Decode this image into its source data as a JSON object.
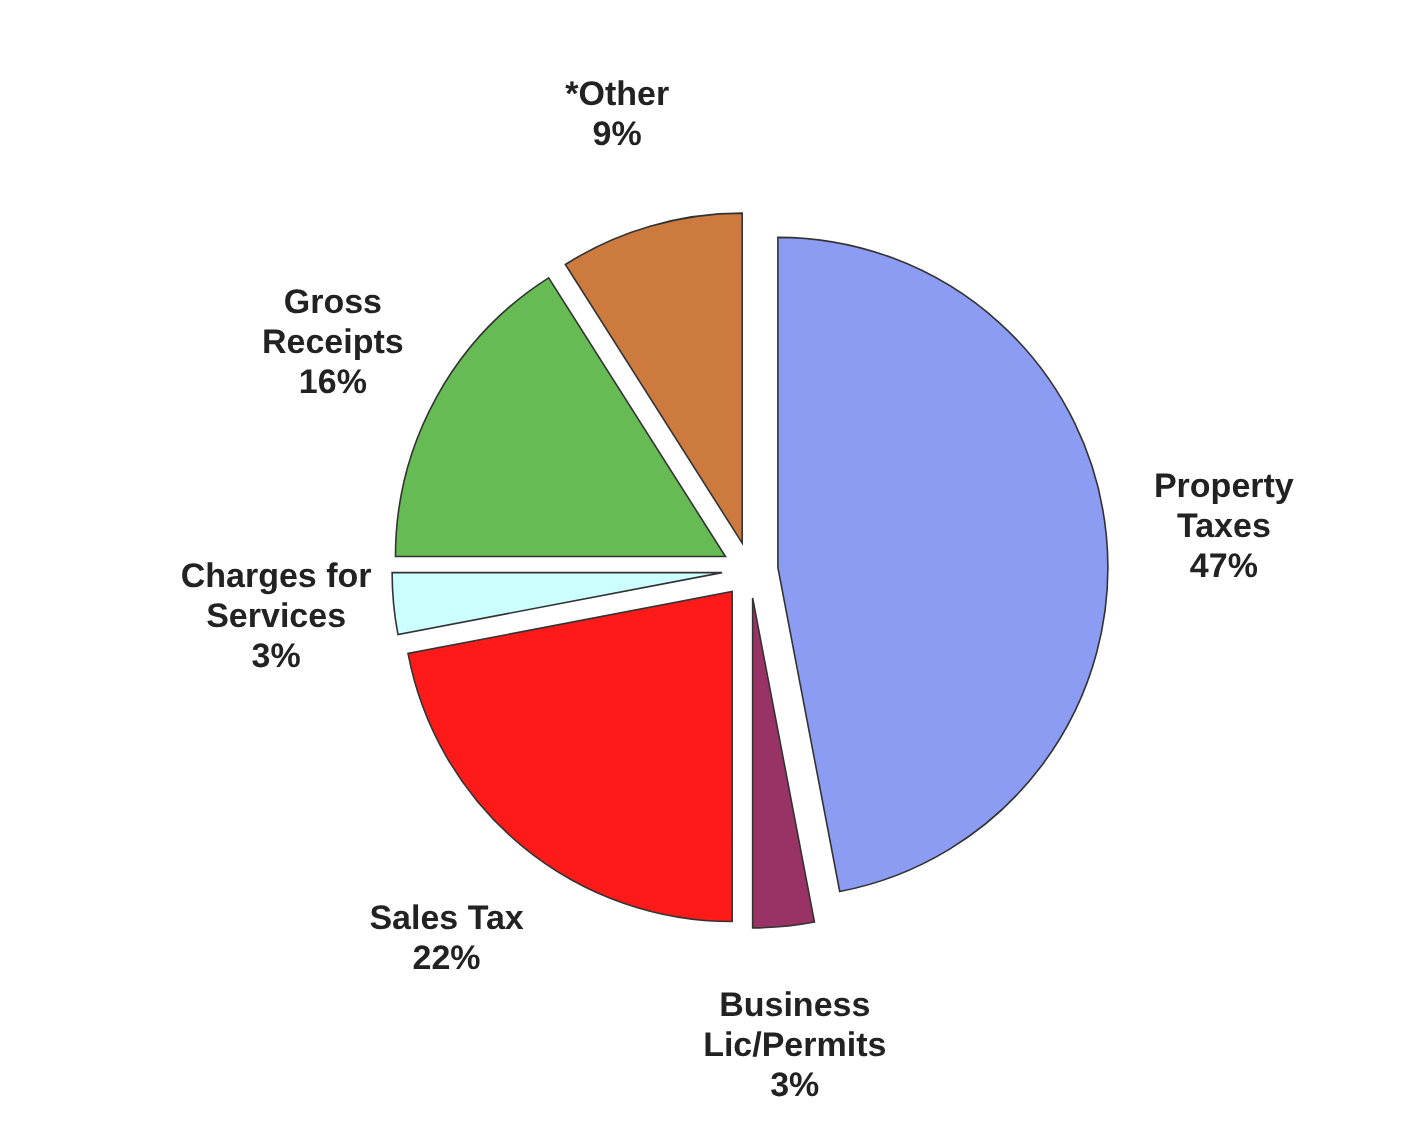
{
  "chart_data": {
    "type": "pie",
    "categories": [
      "Property Taxes",
      "Business Lic/Permits",
      "Sales Tax",
      "Charges for Services",
      "Gross Receipts",
      "*Other"
    ],
    "values": [
      47,
      3,
      22,
      3,
      16,
      9
    ],
    "value_labels": [
      "47%",
      "3%",
      "22%",
      "3%",
      "16%",
      "9%"
    ],
    "colors": [
      "#8c9cf2",
      "#993366",
      "#ff1a1a",
      "#ccffff",
      "#66bb55",
      "#cc7a3d"
    ]
  }
}
